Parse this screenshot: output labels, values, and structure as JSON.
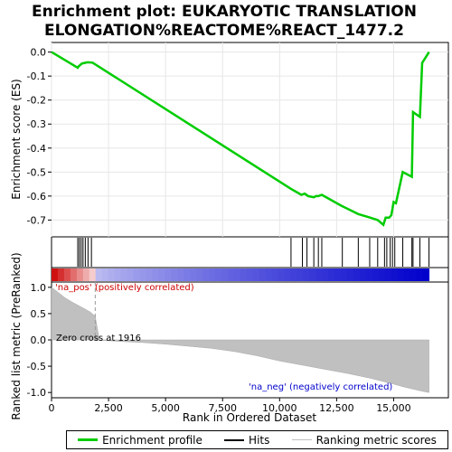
{
  "chart_data": {
    "type": "line",
    "title_line1": "Enrichment plot: EUKARYOTIC TRANSLATION",
    "title_line2": "ELONGATION%REACTOME%REACT_1477.2",
    "xlabel": "Rank in Ordered Dataset",
    "xlim": [
      0,
      17400
    ],
    "x_ticks": [
      0,
      2500,
      5000,
      7500,
      10000,
      12500,
      15000
    ],
    "x_tick_labels": [
      "0",
      "2,500",
      "5,000",
      "7,500",
      "10,000",
      "12,500",
      "15,000"
    ],
    "es_panel": {
      "ylabel": "Enrichment score (ES)",
      "ylim": [
        -0.77,
        0.04
      ],
      "y_ticks": [
        0.0,
        -0.1,
        -0.2,
        -0.3,
        -0.4,
        -0.5,
        -0.6,
        -0.7
      ],
      "y_tick_labels": [
        "0.0",
        "-0.1",
        "-0.2",
        "-0.3",
        "-0.4",
        "-0.5",
        "-0.6",
        "-0.7"
      ],
      "series": [
        {
          "name": "Enrichment profile",
          "color": "#00cc00",
          "x": [
            0,
            1150,
            1200,
            1250,
            1300,
            1350,
            1450,
            1550,
            1650,
            1800,
            10500,
            10950,
            11100,
            11250,
            11500,
            11600,
            11700,
            11850,
            12700,
            13450,
            13900,
            14300,
            14550,
            14650,
            14800,
            14900,
            15000,
            15100,
            15400,
            15800,
            15850,
            16150,
            16250,
            16550
          ],
          "y": [
            0.0,
            -0.065,
            -0.058,
            -0.055,
            -0.05,
            -0.047,
            -0.045,
            -0.043,
            -0.043,
            -0.044,
            -0.57,
            -0.595,
            -0.59,
            -0.6,
            -0.605,
            -0.6,
            -0.6,
            -0.595,
            -0.64,
            -0.675,
            -0.688,
            -0.7,
            -0.72,
            -0.69,
            -0.69,
            -0.68,
            -0.625,
            -0.63,
            -0.5,
            -0.52,
            -0.25,
            -0.27,
            -0.045,
            0.0
          ]
        }
      ]
    },
    "hits": {
      "name": "Hits",
      "positions": [
        1150,
        1220,
        1300,
        1380,
        1480,
        1600,
        1750,
        10500,
        11000,
        11200,
        11500,
        11700,
        11850,
        12750,
        13450,
        13950,
        14300,
        14600,
        14700,
        14850,
        14950,
        15050,
        15400,
        15800,
        15850,
        16150,
        16550
      ]
    },
    "metric_panel": {
      "ylabel": "Ranked list metric (PreRanked)",
      "ylim": [
        -1.1,
        1.1
      ],
      "y_ticks": [
        1.0,
        0.5,
        0.0,
        -0.5,
        -1.0
      ],
      "y_tick_labels": [
        "1.0",
        "0.5",
        "0.0",
        "-0.5",
        "-1.0"
      ],
      "series": [
        {
          "name": "Ranking metric scores",
          "color": "#c0c0c0",
          "x": [
            0,
            300,
            600,
            900,
            1200,
            1500,
            1700,
            1916,
            2100,
            3000,
            4000,
            5000,
            6000,
            7000,
            8000,
            9000,
            10000,
            11000,
            12000,
            13000,
            14000,
            15000,
            15500,
            16000,
            16300,
            16550
          ],
          "y": [
            1.0,
            0.9,
            0.8,
            0.72,
            0.65,
            0.58,
            0.53,
            0.45,
            -0.005,
            -0.03,
            -0.05,
            -0.08,
            -0.12,
            -0.16,
            -0.22,
            -0.3,
            -0.4,
            -0.48,
            -0.56,
            -0.64,
            -0.73,
            -0.84,
            -0.9,
            -0.95,
            -0.98,
            -1.0
          ]
        }
      ],
      "annotations": {
        "pos_label": "'na_pos' (positively correlated)",
        "pos_color": "#cc0000",
        "neg_label": "'na_neg' (negatively correlated)",
        "neg_color": "#0000cc",
        "zero_cross": "Zero cross at 1916",
        "zero_cross_x": 1916
      }
    },
    "legend": [
      "Enrichment profile",
      "Hits",
      "Ranking metric scores"
    ]
  }
}
